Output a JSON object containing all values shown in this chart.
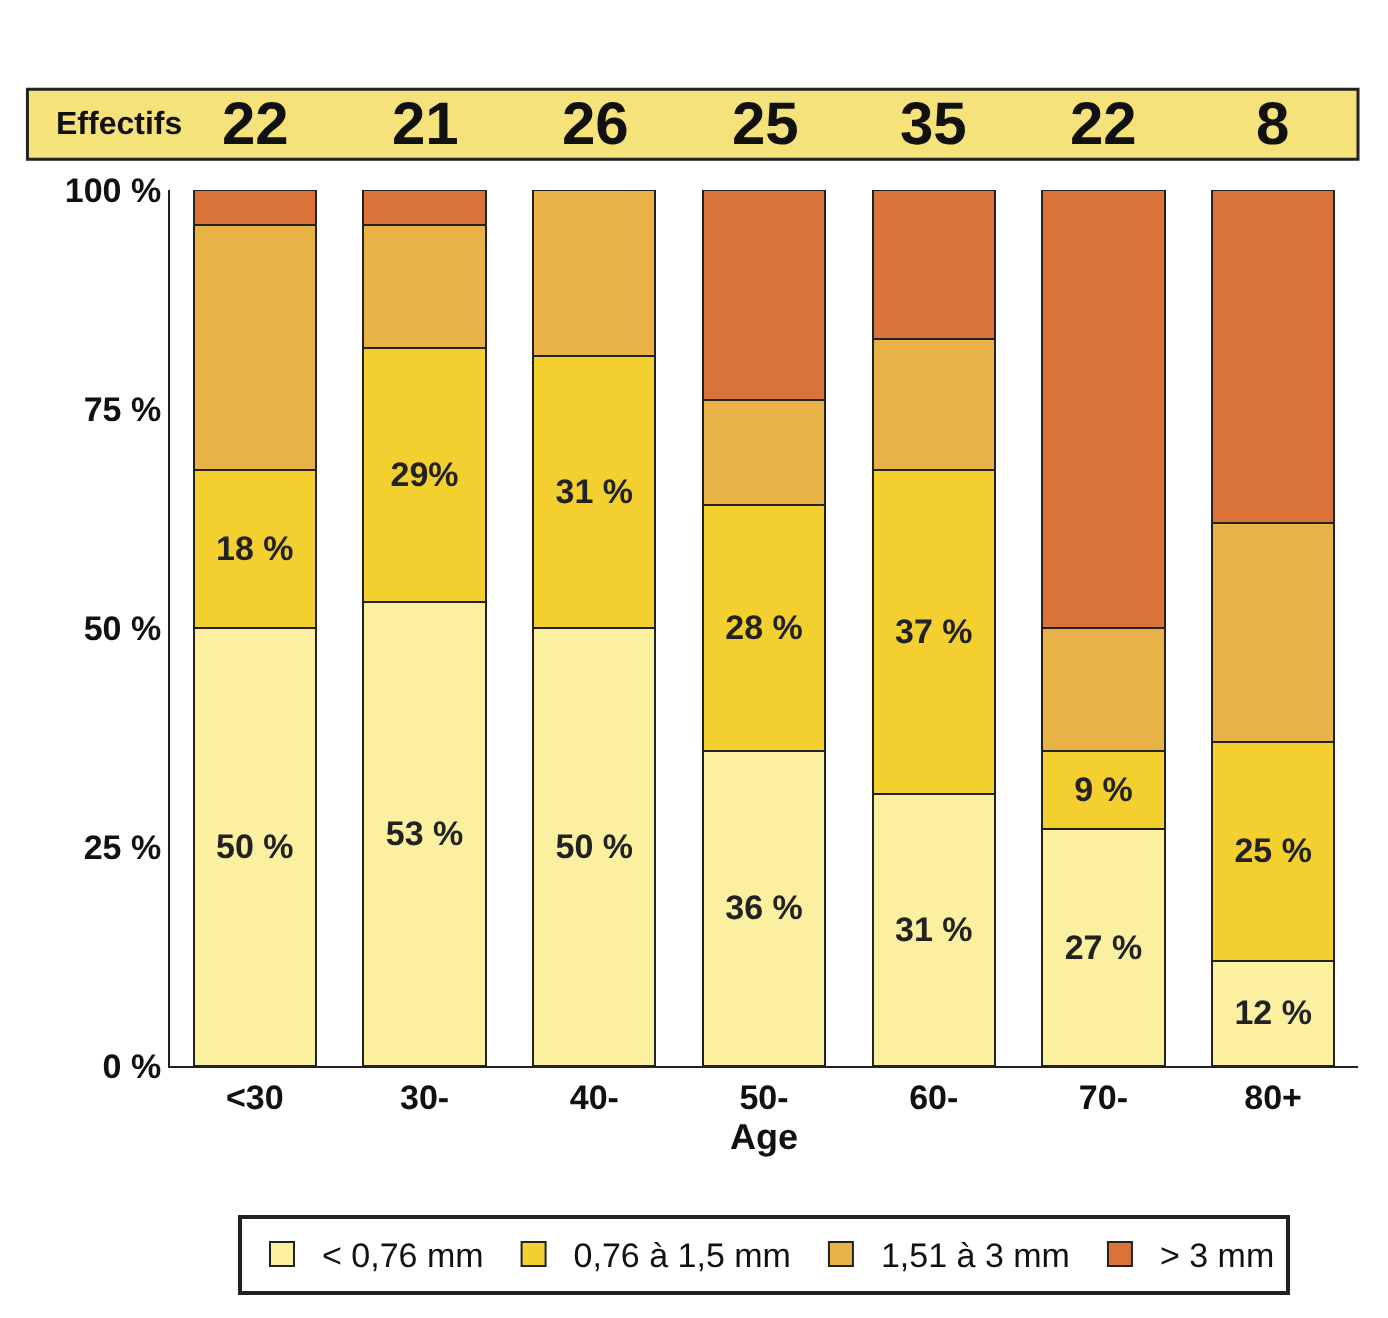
{
  "chart_data": {
    "type": "bar",
    "stacked": true,
    "xlabel": "Age",
    "categories": [
      "<30",
      "30-",
      "40-",
      "50-",
      "60-",
      "70-",
      "80+"
    ],
    "series": [
      {
        "name": "< 0,76 mm",
        "color": "#faf0a0",
        "values": [
          50,
          53,
          50,
          36,
          31,
          27,
          12
        ],
        "value_labels": [
          "50 %",
          "53 %",
          "50 %",
          "36 %",
          "31 %",
          "27 %",
          "12 %"
        ]
      },
      {
        "name": "0,76 à 1,5 mm",
        "color": "#f3d030",
        "values": [
          18,
          29,
          31,
          28,
          37,
          9,
          25
        ],
        "value_labels": [
          "18 %",
          "29%",
          "31 %",
          "28 %",
          "37 %",
          "9 %",
          "25 %"
        ]
      },
      {
        "name": "1,51 à 3 mm",
        "color": "#e9b247",
        "values": [
          28,
          14,
          19,
          12,
          15,
          14,
          25
        ],
        "value_labels": [
          null,
          null,
          null,
          null,
          null,
          null,
          null
        ]
      },
      {
        "name": "> 3 mm",
        "color": "#d9733a",
        "values": [
          4,
          4,
          null,
          24,
          17,
          50,
          38
        ],
        "value_labels": [
          null,
          null,
          null,
          null,
          null,
          null,
          null
        ]
      }
    ],
    "ylim": [
      0,
      100
    ],
    "yticks": [
      {
        "value": 0,
        "label": "0 %"
      },
      {
        "value": 25,
        "label": "25 %"
      },
      {
        "value": 50,
        "label": "50 %"
      },
      {
        "value": 75,
        "label": "75 %"
      },
      {
        "value": 100,
        "label": "100 %"
      }
    ],
    "grid": false,
    "legend": "bottom",
    "annotations": [
      "Effectifs",
      "22",
      "21",
      "26",
      "25",
      "35",
      "22",
      "8"
    ]
  }
}
